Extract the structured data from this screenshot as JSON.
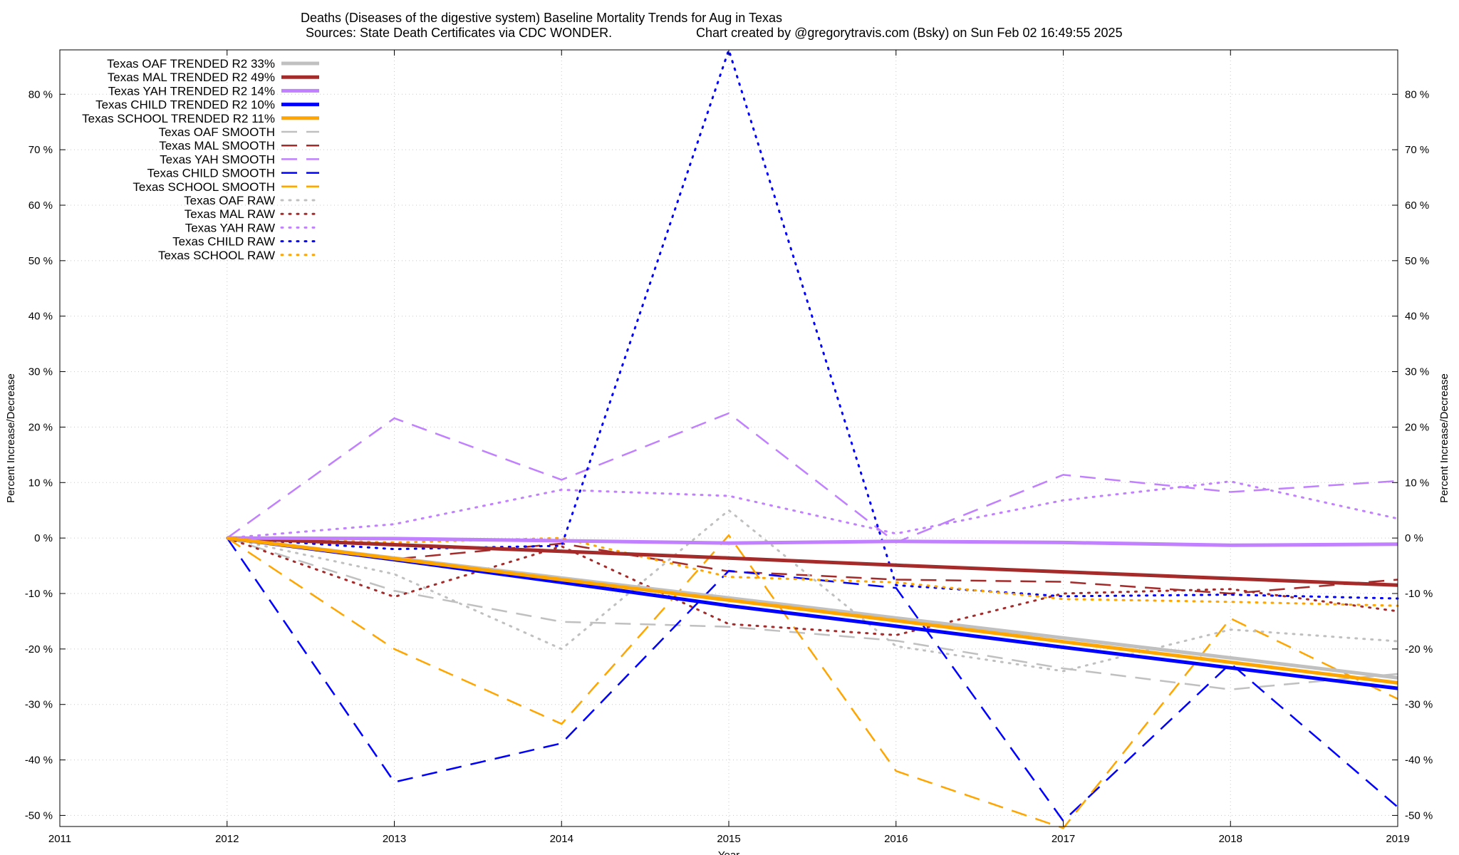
{
  "chart_data": {
    "type": "line",
    "title": "Deaths (Diseases of the digestive system)  Baseline Mortality Trends for Aug in Texas",
    "subtitle_left": "Sources: State Death Certificates via CDC WONDER.",
    "subtitle_right": "Chart created by @gregorytravis.com (Bsky) on Sun Feb 02 16:49:55 2025",
    "xlabel": "Year",
    "ylabel": "Percent Increase/Decrease",
    "y2label": "Percent Increase/Decrease",
    "xlim": [
      2011,
      2019
    ],
    "ylim": [
      -52,
      88
    ],
    "x_ticks": [
      2011,
      2012,
      2013,
      2014,
      2015,
      2016,
      2017,
      2018,
      2019
    ],
    "x_tick_labels": [
      "2011",
      "2012",
      "2013",
      "2014",
      "2015",
      "2016",
      "2017",
      "2018",
      "2019"
    ],
    "y_ticks": [
      -50,
      -40,
      -30,
      -20,
      -10,
      0,
      10,
      20,
      30,
      40,
      50,
      60,
      70,
      80
    ],
    "y_tick_labels": [
      "-50 %",
      "-40 %",
      "-30 %",
      "-20 %",
      "-10 %",
      "0 %",
      "10 %",
      "20 %",
      "30 %",
      "40 %",
      "50 %",
      "60 %",
      "70 %",
      "80 %"
    ],
    "grid": true,
    "legend_position": "top-left",
    "x": [
      2012,
      2013,
      2014,
      2015,
      2016,
      2017,
      2018,
      2019
    ],
    "series": [
      {
        "name": "Texas OAF TRENDED R2  33%",
        "style": "solid",
        "color": "#c0c0c0",
        "values": [
          0,
          -3.6,
          -7.2,
          -10.8,
          -14.4,
          -18.0,
          -21.6,
          -25.2
        ]
      },
      {
        "name": "Texas MAL TRENDED R2  49%",
        "style": "solid",
        "color": "#a52a2a",
        "values": [
          0,
          -1.2,
          -2.4,
          -3.6,
          -4.9,
          -6.1,
          -7.3,
          -8.5
        ]
      },
      {
        "name": "Texas YAH TRENDED R2  14%",
        "style": "solid",
        "color": "#c080ff",
        "values": [
          0,
          -0.1,
          -0.5,
          -0.9,
          -0.6,
          -0.8,
          -1.3,
          -1.1
        ]
      },
      {
        "name": "Texas CHILD TRENDED R2  10%",
        "style": "solid",
        "color": "#0000ff",
        "values": [
          0,
          -3.9,
          -8.0,
          -12.2,
          -15.9,
          -19.7,
          -23.4,
          -27.1
        ]
      },
      {
        "name": "Texas SCHOOL TRENDED R2  11%",
        "style": "solid",
        "color": "#ffa500",
        "values": [
          0,
          -3.7,
          -7.5,
          -11.2,
          -14.9,
          -18.7,
          -22.4,
          -26.1
        ]
      },
      {
        "name": "Texas OAF SMOOTH",
        "style": "dashed",
        "color": "#c0c0c0",
        "values": [
          0,
          -9.5,
          -15.1,
          -16.0,
          -18.5,
          -23.5,
          -27.3,
          -24.5
        ]
      },
      {
        "name": "Texas MAL SMOOTH",
        "style": "dashed",
        "color": "#a52a2a",
        "values": [
          0,
          -3.8,
          -1.0,
          -6.0,
          -7.5,
          -7.9,
          -10.0,
          -7.5
        ]
      },
      {
        "name": "Texas YAH SMOOTH",
        "style": "dashed",
        "color": "#c080ff",
        "values": [
          0,
          21.6,
          10.5,
          22.5,
          -0.8,
          11.4,
          8.3,
          10.3
        ]
      },
      {
        "name": "Texas CHILD SMOOTH",
        "style": "dashed",
        "color": "#0000ff",
        "values": [
          0,
          -44.0,
          -37.0,
          -5.9,
          -9.0,
          -51.0,
          -22.6,
          -48.5
        ]
      },
      {
        "name": "Texas SCHOOL SMOOTH",
        "style": "dashed",
        "color": "#ffa500",
        "values": [
          0,
          -20.0,
          -33.5,
          0.5,
          -42.0,
          -52.3,
          -14.5,
          -29.0
        ]
      },
      {
        "name": "Texas OAF RAW",
        "style": "dotted",
        "color": "#c0c0c0",
        "values": [
          0,
          -6.5,
          -20.0,
          5.0,
          -19.5,
          -24.0,
          -16.5,
          -18.6
        ]
      },
      {
        "name": "Texas MAL RAW",
        "style": "dotted",
        "color": "#a52a2a",
        "values": [
          0,
          -10.6,
          -1.5,
          -15.5,
          -17.5,
          -10.0,
          -9.2,
          -13.2
        ]
      },
      {
        "name": "Texas YAH RAW",
        "style": "dotted",
        "color": "#c080ff",
        "values": [
          0,
          2.5,
          8.7,
          7.6,
          0.8,
          6.8,
          10.2,
          3.5
        ]
      },
      {
        "name": "Texas CHILD RAW",
        "style": "dotted",
        "color": "#0000ff",
        "values": [
          0,
          -2.0,
          -1.4,
          88.0,
          -8.5,
          -10.5,
          -10.2,
          -10.9
        ]
      },
      {
        "name": "Texas SCHOOL RAW",
        "style": "dotted",
        "color": "#ffa500",
        "values": [
          0,
          -0.8,
          0.0,
          -7.0,
          -8.0,
          -11.0,
          -11.5,
          -12.2
        ]
      }
    ]
  }
}
